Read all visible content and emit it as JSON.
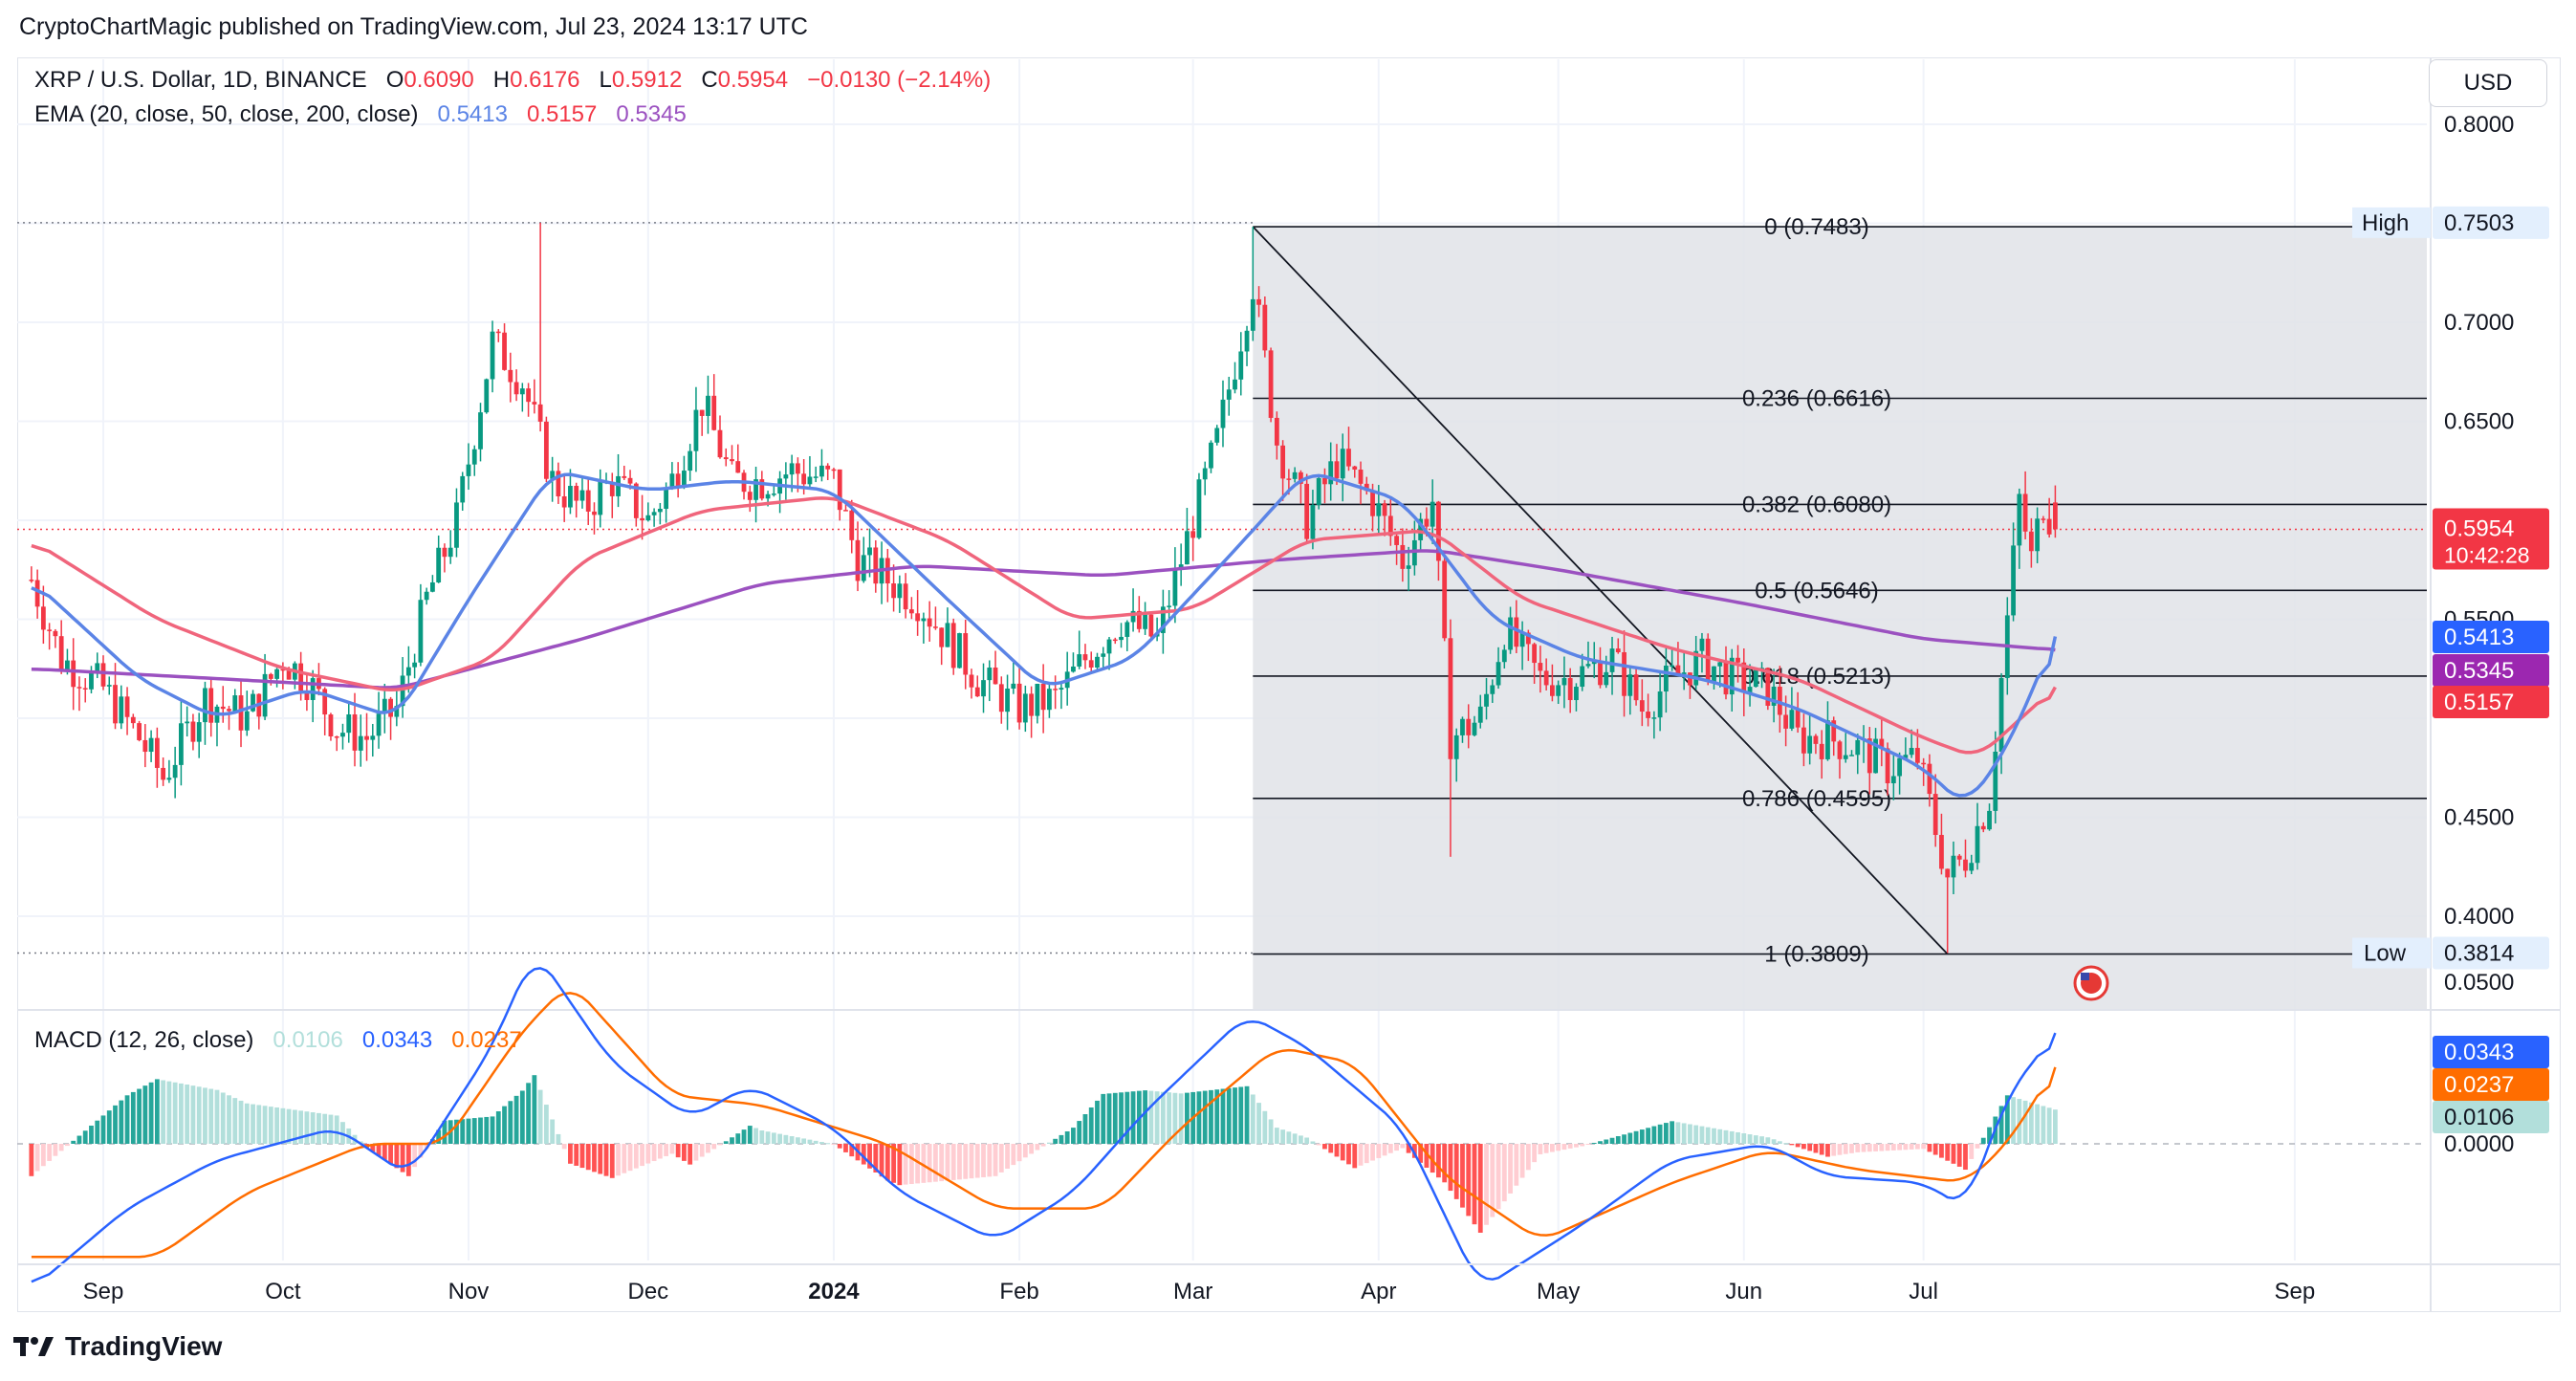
{
  "publisher": "CryptoChartMagic published on TradingView.com, Jul 23, 2024 13:17 UTC",
  "legend": {
    "symbol": "XRP / U.S. Dollar, 1D, BINANCE",
    "o_label": "O",
    "o_value": "0.6090",
    "h_label": "H",
    "h_value": "0.6176",
    "l_label": "L",
    "l_value": "0.5912",
    "c_label": "C",
    "c_value": "0.5954",
    "change": "−0.0130 (−2.14%)",
    "ema_label": "EMA (20, close, 50, close, 200, close)",
    "ema20": "0.5413",
    "ema50": "0.5157",
    "ema200": "0.5345",
    "macd_label": "MACD (12, 26, close)",
    "macd_hist": "0.0106",
    "macd_line": "0.0343",
    "macd_signal": "0.0237"
  },
  "currency_button": "USD",
  "footer_brand": "TradingView",
  "colors": {
    "up": "#089981",
    "down": "#f23645",
    "ema20": "#5b84e6",
    "ema50": "#f0657c",
    "ema200": "#9b51c0",
    "macd": "#2962ff",
    "signal": "#ff6d00",
    "hist_up": "#26a69a",
    "hist_up_light": "#b2dfdb",
    "hist_down": "#ff5252",
    "hist_down_light": "#ffcdd2",
    "fib_zone": "#e1e3e8"
  },
  "chart_data": [
    {
      "type": "candlestick",
      "title": "XRP / U.S. Dollar, 1D, BINANCE",
      "x_tick_labels": [
        "Sep",
        "Oct",
        "Nov",
        "Dec",
        "2024",
        "Feb",
        "Mar",
        "Apr",
        "May",
        "Jun",
        "Jul",
        "Aug",
        "Sep"
      ],
      "y_tick_labels": [
        "0.8000",
        "0.7000",
        "0.6500",
        "0.5500",
        "0.4500",
        "0.4000"
      ],
      "ylim": [
        0.355,
        0.82
      ],
      "last_price": {
        "value": 0.5954,
        "label": "0.5954",
        "countdown": "10:42:28"
      },
      "ema_values": {
        "ema20": 0.5413,
        "ema50": 0.5157,
        "ema200": 0.5345
      },
      "ema_tags": [
        "0.5413",
        "0.5345",
        "0.5157"
      ],
      "high_marker": {
        "label": "High",
        "value_label": "0.7503",
        "value": 0.7503
      },
      "low_marker": {
        "label": "Low",
        "value_label": "0.3814",
        "value": 0.3814
      },
      "fibonacci": [
        {
          "label": "0 (0.7483)",
          "value": 0.7483
        },
        {
          "label": "0.236 (0.6616)",
          "value": 0.6616
        },
        {
          "label": "0.382 (0.6080)",
          "value": 0.608
        },
        {
          "label": "0.5 (0.5646)",
          "value": 0.5646
        },
        {
          "label": "0.618 (0.5213)",
          "value": 0.5213
        },
        {
          "label": "0.786 (0.4595)",
          "value": 0.4595
        },
        {
          "label": "1 (0.3809)",
          "value": 0.3809
        }
      ],
      "price_path": [
        [
          "Aug 20",
          0.57
        ],
        [
          "Aug 25",
          0.53
        ],
        [
          "Sep 1",
          0.515
        ],
        [
          "Sep 7",
          0.49
        ],
        [
          "Sep 11",
          0.47
        ],
        [
          "Sep 18",
          0.51
        ],
        [
          "Sep 25",
          0.5
        ],
        [
          "Oct 1",
          0.53
        ],
        [
          "Oct 5",
          0.52
        ],
        [
          "Oct 10",
          0.495
        ],
        [
          "Oct 15",
          0.49
        ],
        [
          "Oct 20",
          0.505
        ],
        [
          "Oct 25",
          0.56
        ],
        [
          "Oct 30",
          0.6
        ],
        [
          "Nov 5",
          0.69
        ],
        [
          "Nov 10",
          0.67
        ],
        [
          "Nov 15",
          0.62
        ],
        [
          "Nov 20",
          0.605
        ],
        [
          "Nov 25",
          0.62
        ],
        [
          "Dec 1",
          0.6
        ],
        [
          "Dec 5",
          0.62
        ],
        [
          "Dec 10",
          0.66
        ],
        [
          "Dec 15",
          0.62
        ],
        [
          "Dec 20",
          0.62
        ],
        [
          "Dec 25",
          0.625
        ],
        [
          "Jan 1",
          0.62
        ],
        [
          "Jan 5",
          0.58
        ],
        [
          "Jan 10",
          0.57
        ],
        [
          "Jan 15",
          0.56
        ],
        [
          "Jan 20",
          0.54
        ],
        [
          "Jan 25",
          0.52
        ],
        [
          "Feb 1",
          0.505
        ],
        [
          "Feb 7",
          0.51
        ],
        [
          "Feb 12",
          0.53
        ],
        [
          "Feb 18",
          0.55
        ],
        [
          "Feb 24",
          0.54
        ],
        [
          "Mar 1",
          0.6
        ],
        [
          "Mar 5",
          0.64
        ],
        [
          "Mar 11",
          0.72
        ],
        [
          "Mar 15",
          0.64
        ],
        [
          "Mar 20",
          0.6
        ],
        [
          "Mar 25",
          0.63
        ],
        [
          "Mar 31",
          0.61
        ],
        [
          "Apr 5",
          0.58
        ],
        [
          "Apr 10",
          0.61
        ],
        [
          "Apr 13",
          0.49
        ],
        [
          "Apr 18",
          0.5
        ],
        [
          "Apr 22",
          0.545
        ],
        [
          "Apr 28",
          0.52
        ],
        [
          "May 3",
          0.52
        ],
        [
          "May 10",
          0.53
        ],
        [
          "May 15",
          0.505
        ],
        [
          "May 20",
          0.52
        ],
        [
          "May 25",
          0.53
        ],
        [
          "May 30",
          0.52
        ],
        [
          "Jun 5",
          0.515
        ],
        [
          "Jun 10",
          0.49
        ],
        [
          "Jun 15",
          0.49
        ],
        [
          "Jun 20",
          0.485
        ],
        [
          "Jun 25",
          0.475
        ],
        [
          "Jun 30",
          0.48
        ],
        [
          "Jul 5",
          0.42
        ],
        [
          "Jul 8",
          0.43
        ],
        [
          "Jul 12",
          0.46
        ],
        [
          "Jul 15",
          0.55
        ],
        [
          "Jul 17",
          0.61
        ],
        [
          "Jul 19",
          0.58
        ],
        [
          "Jul 21",
          0.61
        ],
        [
          "Jul 23",
          0.5954
        ]
      ],
      "ema20_path": [
        [
          "Aug 20",
          0.57
        ],
        [
          "Sep 7",
          0.52
        ],
        [
          "Sep 20",
          0.5
        ],
        [
          "Oct 5",
          0.515
        ],
        [
          "Oct 20",
          0.5
        ],
        [
          "Nov 1",
          0.56
        ],
        [
          "Nov 15",
          0.625
        ],
        [
          "Dec 1",
          0.615
        ],
        [
          "Dec 15",
          0.62
        ],
        [
          "Jan 1",
          0.615
        ],
        [
          "Jan 20",
          0.56
        ],
        [
          "Feb 5",
          0.515
        ],
        [
          "Feb 20",
          0.53
        ],
        [
          "Mar 8",
          0.585
        ],
        [
          "Mar 20",
          0.625
        ],
        [
          "Apr 5",
          0.61
        ],
        [
          "Apr 20",
          0.55
        ],
        [
          "May 5",
          0.53
        ],
        [
          "May 25",
          0.52
        ],
        [
          "Jun 10",
          0.505
        ],
        [
          "Jul 1",
          0.475
        ],
        [
          "Jul 8",
          0.455
        ],
        [
          "Jul 15",
          0.485
        ],
        [
          "Jul 23",
          0.5413
        ]
      ],
      "ema50_path": [
        [
          "Aug 20",
          0.59
        ],
        [
          "Sep 10",
          0.55
        ],
        [
          "Oct 1",
          0.525
        ],
        [
          "Oct 20",
          0.513
        ],
        [
          "Nov 5",
          0.53
        ],
        [
          "Nov 20",
          0.58
        ],
        [
          "Dec 10",
          0.605
        ],
        [
          "Jan 1",
          0.612
        ],
        [
          "Jan 20",
          0.59
        ],
        [
          "Feb 10",
          0.55
        ],
        [
          "Mar 1",
          0.555
        ],
        [
          "Mar 20",
          0.59
        ],
        [
          "Apr 10",
          0.595
        ],
        [
          "Apr 25",
          0.56
        ],
        [
          "May 20",
          0.535
        ],
        [
          "Jun 10",
          0.52
        ],
        [
          "Jul 1",
          0.49
        ],
        [
          "Jul 10",
          0.48
        ],
        [
          "Jul 23",
          0.5157
        ]
      ],
      "ema200_path": [
        [
          "Aug 20",
          0.525
        ],
        [
          "Sep 20",
          0.52
        ],
        [
          "Oct 20",
          0.515
        ],
        [
          "Nov 20",
          0.54
        ],
        [
          "Dec 20",
          0.568
        ],
        [
          "Jan 15",
          0.577
        ],
        [
          "Feb 15",
          0.572
        ],
        [
          "Mar 15",
          0.58
        ],
        [
          "Apr 10",
          0.585
        ],
        [
          "May 1",
          0.575
        ],
        [
          "Jun 1",
          0.558
        ],
        [
          "Jul 1",
          0.54
        ],
        [
          "Jul 23",
          0.5345
        ]
      ],
      "macd_path": [
        [
          "Aug 20",
          -0.045
        ],
        [
          "Sep 5",
          -0.02
        ],
        [
          "Sep 20",
          -0.005
        ],
        [
          "Oct 10",
          0.005
        ],
        [
          "Oct 22",
          -0.01
        ],
        [
          "Nov 5",
          0.03
        ],
        [
          "Nov 12",
          0.06
        ],
        [
          "Nov 25",
          0.025
        ],
        [
          "Dec 8",
          0.008
        ],
        [
          "Dec 18",
          0.018
        ],
        [
          "Jan 1",
          0.005
        ],
        [
          "Jan 12",
          -0.015
        ],
        [
          "Jan 28",
          -0.03
        ],
        [
          "Feb 10",
          -0.015
        ],
        [
          "Feb 22",
          0.01
        ],
        [
          "Mar 10",
          0.04
        ],
        [
          "Mar 20",
          0.03
        ],
        [
          "Apr 5",
          0.005
        ],
        [
          "Apr 18",
          -0.045
        ],
        [
          "May 5",
          -0.025
        ],
        [
          "May 20",
          -0.005
        ],
        [
          "Jun 5",
          0.0
        ],
        [
          "Jun 15",
          -0.01
        ],
        [
          "Jul 1",
          -0.012
        ],
        [
          "Jul 8",
          -0.02
        ],
        [
          "Jul 15",
          0.015
        ],
        [
          "Jul 23",
          0.0343
        ]
      ],
      "signal_path": [
        [
          "Aug 20",
          -0.035
        ],
        [
          "Sep 10",
          -0.035
        ],
        [
          "Sep 25",
          -0.015
        ],
        [
          "Oct 15",
          0.0
        ],
        [
          "Oct 28",
          0.0
        ],
        [
          "Nov 10",
          0.035
        ],
        [
          "Nov 18",
          0.05
        ],
        [
          "Dec 5",
          0.015
        ],
        [
          "Dec 20",
          0.012
        ],
        [
          "Jan 10",
          0.0
        ],
        [
          "Jan 28",
          -0.02
        ],
        [
          "Feb 15",
          -0.02
        ],
        [
          "Feb 28",
          0.005
        ],
        [
          "Mar 15",
          0.03
        ],
        [
          "Mar 28",
          0.025
        ],
        [
          "Apr 12",
          -0.01
        ],
        [
          "Apr 28",
          -0.03
        ],
        [
          "May 20",
          -0.012
        ],
        [
          "Jun 5",
          -0.002
        ],
        [
          "Jun 20",
          -0.008
        ],
        [
          "Jul 8",
          -0.012
        ],
        [
          "Jul 15",
          0.0
        ],
        [
          "Jul 23",
          0.0237
        ]
      ]
    },
    {
      "type": "bar",
      "title": "MACD (12, 26, close)",
      "y_tick_labels": [
        "0.0500",
        "0.0000"
      ],
      "ylim": [
        -0.06,
        0.06
      ],
      "tags": {
        "macd": "0.0343",
        "signal": "0.0237",
        "hist": "0.0106"
      }
    }
  ]
}
